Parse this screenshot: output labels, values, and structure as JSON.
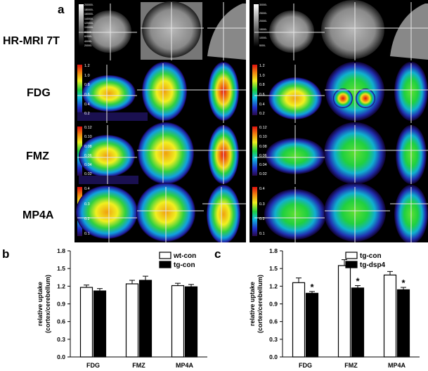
{
  "panel_a": {
    "letter": "a",
    "rows": [
      {
        "label": "HR-MRI 7T",
        "scale_ticks_left": [
          "200000-",
          "180000-",
          "160000-",
          "140000-",
          "120000-",
          "100000-",
          "80000-",
          "60000-",
          "40000-",
          "20000-"
        ],
        "scale_ticks_right": [
          "30000-",
          "25000-",
          "20000-",
          "15000-",
          "10000-",
          "5000-"
        ]
      },
      {
        "label": "FDG",
        "scale_ticks_left": [
          "1.2",
          "1.0",
          "0.8",
          "0.6",
          "0.4",
          "0.2"
        ],
        "scale_ticks_right": [
          "1.2",
          "1.0",
          "0.8",
          "0.6",
          "0.4",
          "0.2"
        ]
      },
      {
        "label": "FMZ",
        "scale_ticks_left": [
          "0.12",
          "0.10",
          "0.08",
          "0.06",
          "0.04",
          "0.02"
        ],
        "scale_ticks_right": [
          "0.12",
          "0.10",
          "0.08",
          "0.06",
          "0.04",
          "0.02"
        ]
      },
      {
        "label": "MP4A",
        "scale_ticks_left": [
          "0.4",
          "0.3",
          "0.2",
          "0.1"
        ],
        "scale_ticks_right": [
          "0.4",
          "0.3",
          "0.2",
          "0.1"
        ]
      }
    ]
  },
  "chart_data": [
    {
      "type": "bar",
      "panel": "b",
      "categories": [
        "FDG",
        "FMZ",
        "MP4A"
      ],
      "series": [
        {
          "name": "wt-con",
          "values": [
            1.18,
            1.24,
            1.21
          ],
          "errors": [
            0.04,
            0.06,
            0.04
          ],
          "color": "#ffffff"
        },
        {
          "name": "tg-con",
          "values": [
            1.12,
            1.3,
            1.19
          ],
          "errors": [
            0.04,
            0.07,
            0.04
          ],
          "color": "#000000"
        }
      ],
      "ylabel": "relative uptake (cortex/cerebellum)",
      "ylabel_lines": [
        "relative uptake",
        "(cortex/cerebellum)"
      ],
      "ylim": [
        0.0,
        1.8
      ],
      "yticks": [
        "0.0",
        "0.3",
        "0.6",
        "0.9",
        "1.2",
        "1.5",
        "1.8"
      ],
      "legend_position": "top-right",
      "significance": []
    },
    {
      "type": "bar",
      "panel": "c",
      "categories": [
        "FDG",
        "FMZ",
        "MP4A"
      ],
      "series": [
        {
          "name": "tg-con",
          "values": [
            1.26,
            1.55,
            1.39
          ],
          "errors": [
            0.08,
            0.1,
            0.06
          ],
          "color": "#ffffff"
        },
        {
          "name": "tg-dsp4",
          "values": [
            1.08,
            1.17,
            1.14
          ],
          "errors": [
            0.03,
            0.04,
            0.04
          ],
          "color": "#000000"
        }
      ],
      "ylabel": "relative uptake (cortex/cerebellum)",
      "ylabel_lines": [
        "relative uptake",
        "(cortex/cerebellum)"
      ],
      "ylim": [
        0.0,
        1.8
      ],
      "yticks": [
        "0.0",
        "0.3",
        "0.6",
        "0.9",
        "1.2",
        "1.5",
        "1.8"
      ],
      "legend_position": "top-left",
      "significance": [
        "*",
        "*",
        "*"
      ]
    }
  ],
  "colors": {
    "figure_bg": "#ffffff",
    "image_bg": "#000000",
    "crosshair": "#e6e6e6"
  }
}
